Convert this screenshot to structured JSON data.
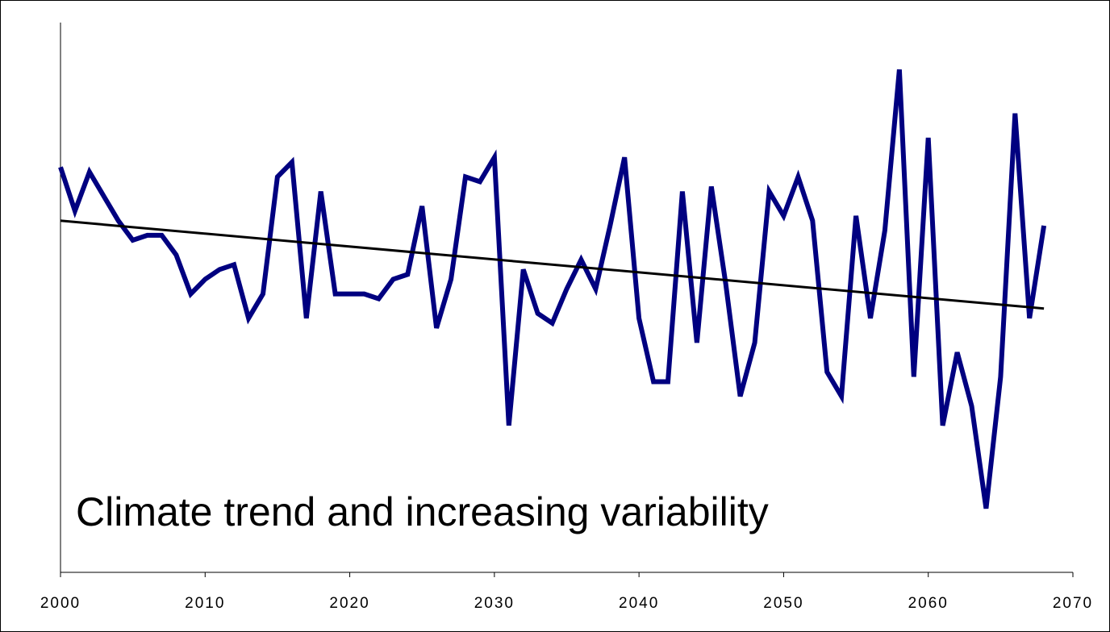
{
  "chart_data": {
    "type": "line",
    "title": "",
    "annotation": "Climate trend and increasing variability",
    "xlabel": "",
    "ylabel": "",
    "xlim": [
      2000,
      2070
    ],
    "ylim": [
      0,
      100
    ],
    "x_ticks": [
      2000,
      2010,
      2020,
      2030,
      2040,
      2050,
      2060,
      2070
    ],
    "y_tick_labels_shown": false,
    "grid": false,
    "legend": "none",
    "series": [
      {
        "color": "#000080",
        "x": [
          2000,
          2001,
          2002,
          2003,
          2004,
          2005,
          2006,
          2007,
          2008,
          2009,
          2010,
          2011,
          2012,
          2013,
          2014,
          2015,
          2016,
          2017,
          2018,
          2019,
          2020,
          2021,
          2022,
          2023,
          2024,
          2025,
          2026,
          2027,
          2028,
          2029,
          2030,
          2031,
          2032,
          2033,
          2034,
          2035,
          2036,
          2037,
          2038,
          2039,
          2040,
          2041,
          2042,
          2043,
          2044,
          2045,
          2046,
          2047,
          2048,
          2049,
          2050,
          2051,
          2052,
          2053,
          2054,
          2055,
          2056,
          2057,
          2058,
          2059,
          2060,
          2061,
          2062,
          2063,
          2064,
          2065,
          2066,
          2067,
          2068
        ],
        "values": [
          75,
          66,
          74,
          69,
          64,
          60,
          61,
          61,
          57,
          49,
          52,
          54,
          55,
          44,
          49,
          73,
          76,
          44,
          70,
          49,
          49,
          49,
          48,
          52,
          53,
          67,
          42,
          52,
          73,
          72,
          77,
          22,
          54,
          45,
          43,
          50,
          56,
          50,
          63,
          77,
          44,
          31,
          31,
          70,
          39,
          71,
          51,
          28,
          39,
          70,
          65,
          73,
          64,
          33,
          28,
          65,
          44,
          62,
          95,
          32,
          81,
          22,
          37,
          26,
          5,
          32,
          86,
          44,
          63
        ]
      },
      {
        "name": "trend",
        "color": "#000000",
        "x": [
          2000,
          2068
        ],
        "values": [
          64,
          46
        ]
      }
    ]
  }
}
